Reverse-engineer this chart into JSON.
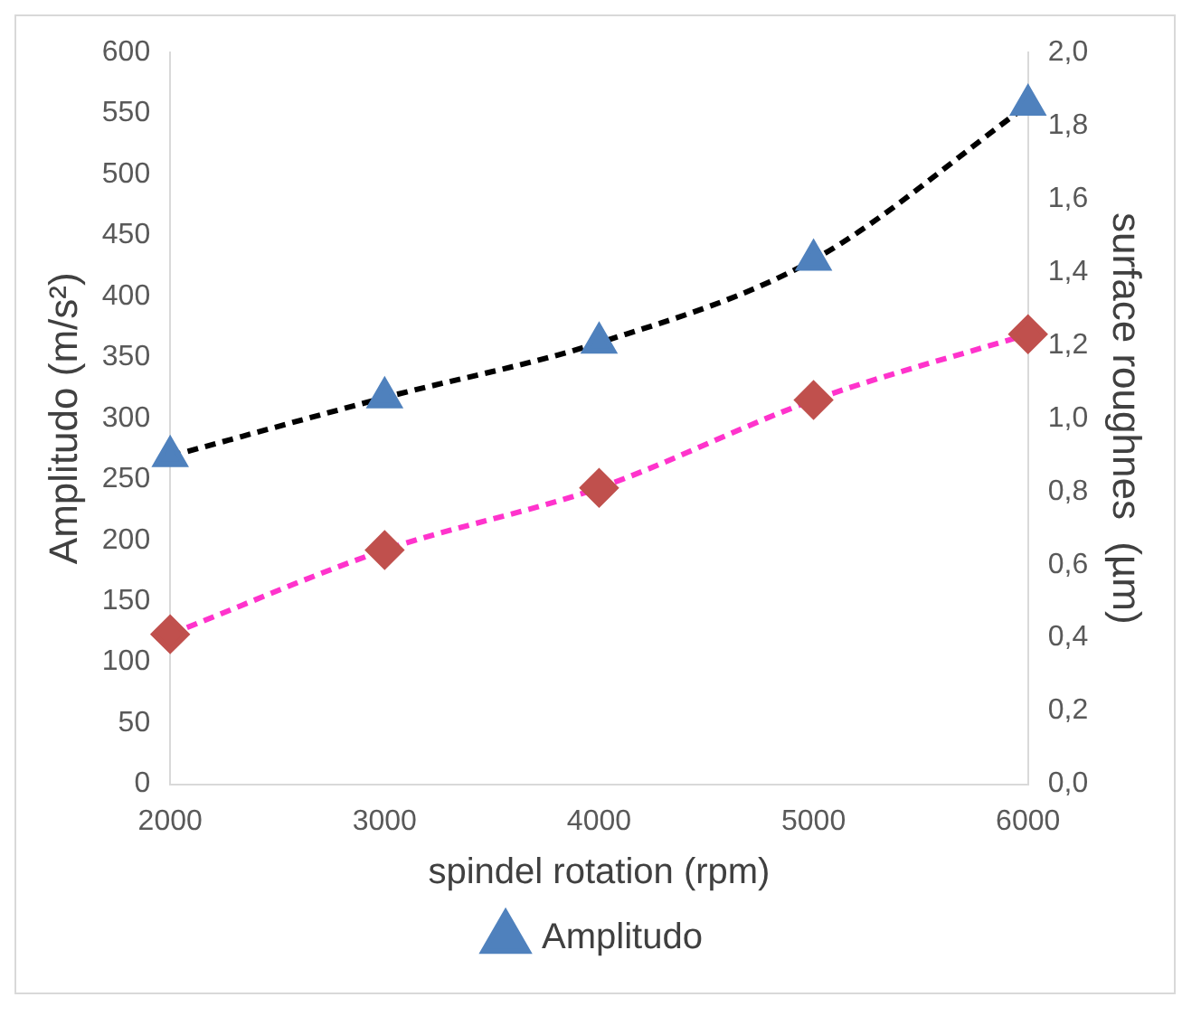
{
  "chart_data": {
    "type": "line",
    "xlabel": "spindel rotation (rpm)",
    "ylabel": "Amplitudo (m/s²)",
    "y2label": "surface roughnes  (µm)",
    "categories": [
      "2000",
      "3000",
      "4000",
      "5000",
      "6000"
    ],
    "series": [
      {
        "name": "Amplitudo",
        "color": "#4f81bd",
        "marker": "triangle",
        "values": [
          269,
          317,
          362,
          430,
          557
        ]
      },
      {
        "color": "#c0504d",
        "marker": "diamond",
        "axis": "y2",
        "values": [
          0.41,
          0.64,
          0.81,
          1.05,
          1.23
        ]
      }
    ],
    "ylim": [
      0,
      600
    ],
    "yticks": [
      0,
      50,
      100,
      150,
      200,
      250,
      300,
      350,
      400,
      450,
      500,
      550,
      600
    ],
    "y2lim": [
      0,
      2
    ],
    "y2ticks": [
      {
        "value": 0,
        "label": "0,0"
      },
      {
        "value": 0.2,
        "label": "0,2"
      },
      {
        "value": 0.4,
        "label": "0,4"
      },
      {
        "value": 0.6,
        "label": "0,6"
      },
      {
        "value": 0.8,
        "label": "0,8"
      },
      {
        "value": 1,
        "label": "1,0"
      },
      {
        "value": 1.2,
        "label": "1,2"
      },
      {
        "value": 1.4,
        "label": "1,4"
      },
      {
        "value": 1.6,
        "label": "1,6"
      },
      {
        "value": 1.8,
        "label": "1,8"
      },
      {
        "value": 2,
        "label": "2,0"
      }
    ],
    "grid": false,
    "legend": "bottom",
    "line_style": "dashed"
  }
}
